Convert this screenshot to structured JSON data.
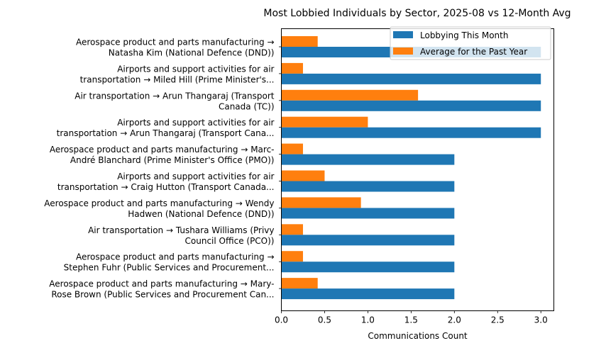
{
  "chart_data": {
    "type": "bar",
    "orientation": "horizontal",
    "title": "Most Lobbied Individuals by Sector, 2025-08 vs 12-Month Avg",
    "xlabel": "Communications Count",
    "ylabel": "",
    "xlim": [
      0,
      3.15
    ],
    "xticks": [
      "0.0",
      "0.5",
      "1.0",
      "1.5",
      "2.0",
      "2.5",
      "3.0"
    ],
    "xtick_values": [
      0,
      0.5,
      1.0,
      1.5,
      2.0,
      2.5,
      3.0
    ],
    "grid": false,
    "legend_position": "top-right",
    "categories": [
      [
        "Aerospace product and parts manufacturing →",
        "Natasha Kim (National Defence (DND))"
      ],
      [
        "Airports and support activities for air",
        "transportation → Miled Hill (Prime Minister's..."
      ],
      [
        "Air transportation → Arun Thangaraj (Transport",
        "Canada (TC))"
      ],
      [
        "Airports and support activities for air",
        "transportation → Arun Thangaraj (Transport Cana..."
      ],
      [
        "Aerospace product and parts manufacturing → Marc-",
        "André Blanchard (Prime Minister's Office (PMO))"
      ],
      [
        "Airports and support activities for air",
        "transportation → Craig Hutton (Transport Canada..."
      ],
      [
        "Aerospace product and parts manufacturing → Wendy",
        "Hadwen (National Defence (DND))"
      ],
      [
        "Air transportation → Tushara Williams (Privy",
        "Council Office (PCO))"
      ],
      [
        "Aerospace product and parts manufacturing →",
        "Stephen Fuhr (Public Services and Procurement..."
      ],
      [
        "Aerospace product and parts manufacturing → Mary-",
        "Rose Brown (Public Services and Procurement Can..."
      ]
    ],
    "series": [
      {
        "name": "Lobbying This Month",
        "color": "#1f77b4",
        "values": [
          3,
          3,
          3,
          3,
          2,
          2,
          2,
          2,
          2,
          2
        ]
      },
      {
        "name": "Average for the Past Year",
        "color": "#ff7f0e",
        "values": [
          0.42,
          0.25,
          1.58,
          1.0,
          0.25,
          0.5,
          0.92,
          0.25,
          0.25,
          0.42
        ]
      }
    ]
  }
}
